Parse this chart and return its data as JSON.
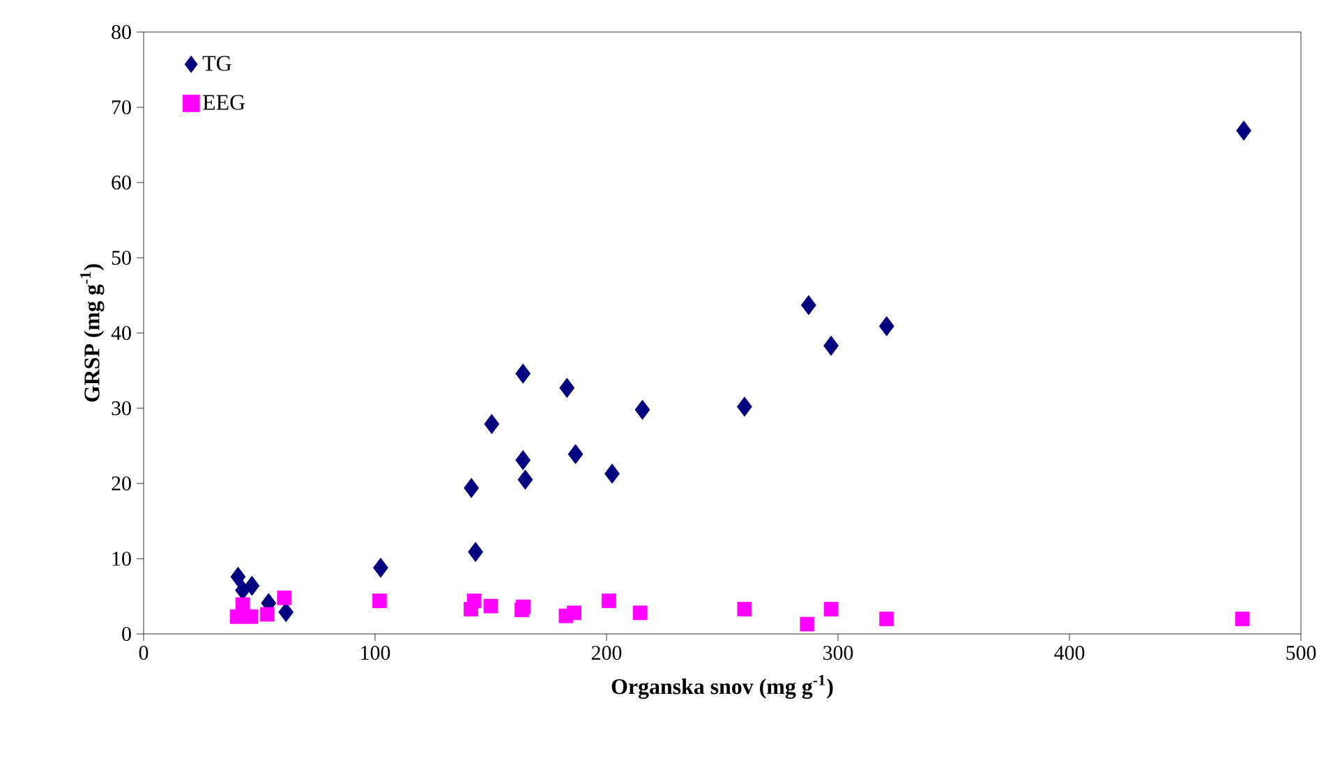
{
  "chart_data": {
    "type": "scatter",
    "xlabel": "**Organska snov (mg g$^{-1}$)**",
    "ylabel": "**GRSP (mg g$^{-1}$)**",
    "xlim": [
      0,
      500
    ],
    "xticks": [
      0,
      100,
      200,
      300,
      400,
      500
    ],
    "ylim": [
      0,
      80
    ],
    "yticks": [
      0,
      10,
      20,
      30,
      40,
      50,
      60,
      70,
      80
    ],
    "grid": false,
    "legend": "top left",
    "series": [
      {
        "name": "TG",
        "color": "#000080",
        "marker": "diamond",
        "x": [
          40.8,
          46.8,
          42.8,
          54,
          61.5,
          102.4,
          143.4,
          141.6,
          150.4,
          163.9,
          164.9,
          163.9,
          182.9,
          186.6,
          202.4,
          215.5,
          259.6,
          287.3,
          297,
          321,
          475.3
        ],
        "values": [
          7.6,
          6.4,
          5.8,
          4.1,
          2.9,
          8.8,
          10.9,
          19.4,
          27.9,
          23.1,
          20.5,
          34.6,
          32.7,
          23.9,
          21.3,
          29.8,
          30.2,
          43.7,
          38.3,
          40.9,
          66.9
        ]
      },
      {
        "name": "EEG",
        "color": "#ff00ff",
        "marker": "square",
        "x": [
          42.8,
          40.4,
          46.4,
          53.4,
          60.8,
          101.9,
          142.8,
          141.4,
          150,
          163.4,
          164,
          182.5,
          186,
          201,
          214.5,
          259.6,
          286.7,
          297,
          321,
          474.7
        ],
        "values": [
          3.9,
          2.3,
          2.3,
          2.6,
          4.8,
          4.4,
          4.4,
          3.3,
          3.7,
          3.2,
          3.6,
          2.4,
          2.8,
          4.4,
          2.8,
          3.3,
          1.3,
          3.3,
          2.0,
          2.0
        ]
      }
    ]
  }
}
